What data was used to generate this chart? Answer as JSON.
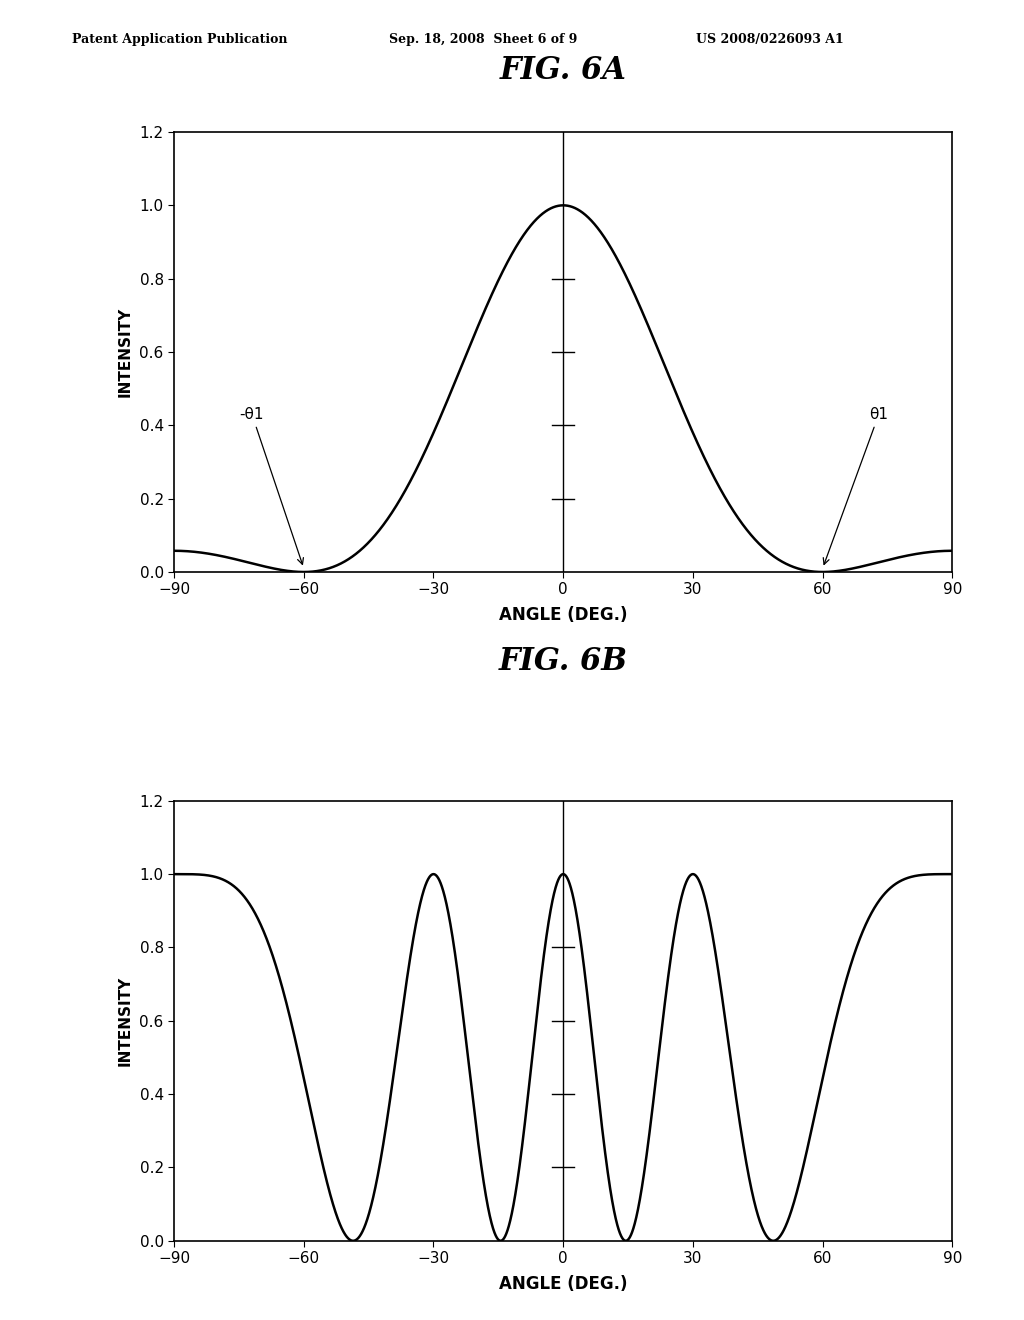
{
  "header_left": "Patent Application Publication",
  "header_mid": "Sep. 18, 2008  Sheet 6 of 9",
  "header_right": "US 2008/0226093 A1",
  "fig6a_title": "FIG. 6A",
  "fig6b_title": "FIG. 6B",
  "xlabel": "ANGLE (DEG.)",
  "ylabel": "INTENSITY",
  "xlim": [
    -90,
    90
  ],
  "ylim": [
    0,
    1.2
  ],
  "xticks": [
    -90,
    -60,
    -30,
    0,
    30,
    60,
    90
  ],
  "yticks": [
    0,
    0.2,
    0.4,
    0.6,
    0.8,
    1.0,
    1.2
  ],
  "annotation_neg": "-θ1",
  "annotation_pos": "θ1",
  "bg_color": "#ffffff",
  "line_color": "#000000",
  "fig_width": 10.24,
  "fig_height": 13.2
}
